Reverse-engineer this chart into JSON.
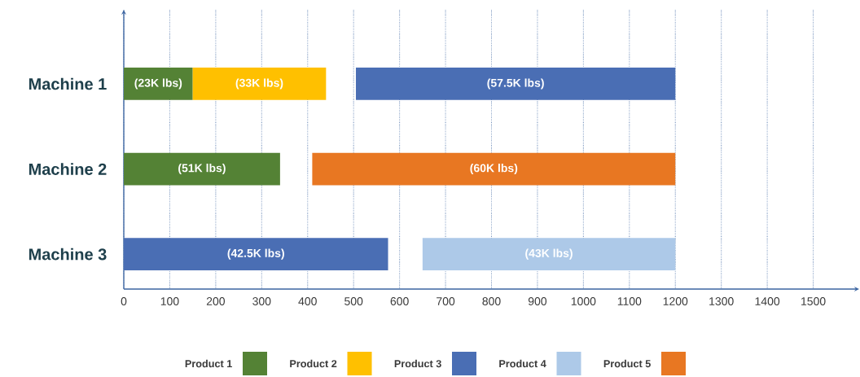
{
  "chart_data": {
    "type": "bar",
    "orientation": "horizontal",
    "categories": [
      "Machine 1",
      "Machine 2",
      "Machine 3"
    ],
    "xlim": [
      0,
      1600
    ],
    "xticks": [
      0,
      100,
      200,
      300,
      400,
      500,
      600,
      700,
      800,
      900,
      1000,
      1100,
      1200,
      1300,
      1400,
      1500
    ],
    "grid": "x",
    "legend": "bottom",
    "series": [
      {
        "name": "Product 1",
        "color": "#548235",
        "values": [
          150,
          340,
          null
        ],
        "base": [
          0,
          0,
          null
        ]
      },
      {
        "name": "Product 2",
        "color": "#ffc000",
        "values": [
          290,
          null,
          null
        ],
        "base": [
          150,
          null,
          null
        ]
      },
      {
        "name": "Product 3",
        "color": "#4a6eb4",
        "values": [
          695,
          null,
          575
        ],
        "base": [
          505,
          null,
          0
        ]
      },
      {
        "name": "Product 4",
        "color": "#adc9e8",
        "values": [
          null,
          null,
          550
        ],
        "base": [
          null,
          null,
          650
        ]
      },
      {
        "name": "Product 5",
        "color": "#e87722",
        "values": [
          null,
          790,
          null
        ],
        "base": [
          null,
          410,
          null
        ]
      }
    ],
    "annotations": [
      "(23K lbs)",
      "(33K lbs)",
      "(57.5K lbs)",
      "(51K lbs)",
      "(60K lbs)",
      "(42.5K lbs)",
      "(43K lbs)"
    ]
  }
}
